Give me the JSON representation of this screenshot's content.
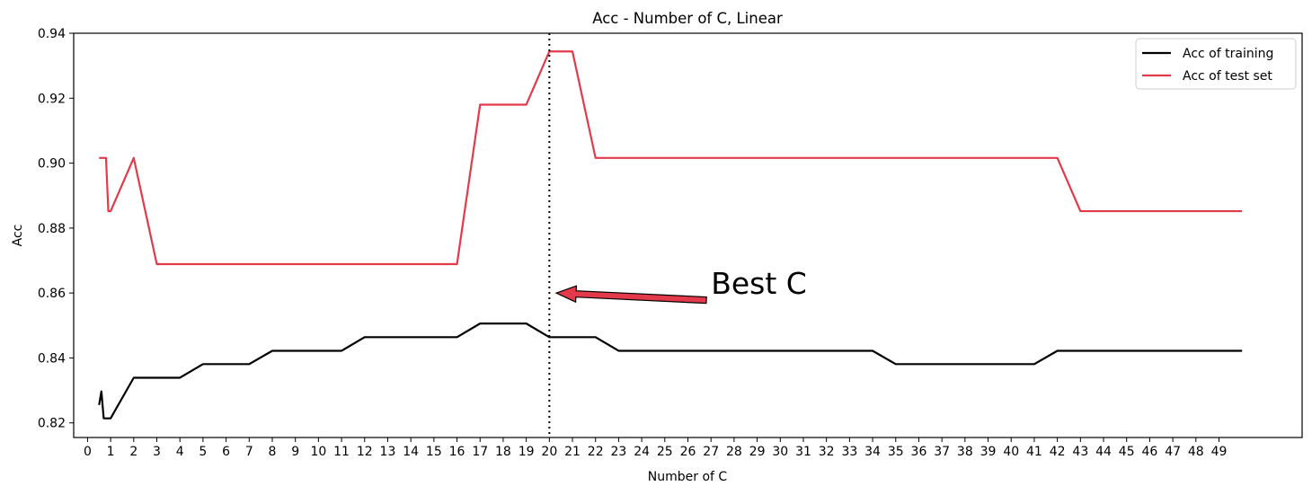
{
  "chart_data": {
    "type": "line",
    "title": "Acc - Number of C, Linear",
    "xlabel": "Number of C",
    "ylabel": "Acc",
    "xlim": [
      -0.6,
      52.6
    ],
    "ylim": [
      0.8155,
      0.94
    ],
    "xticks": [
      0,
      1,
      2,
      3,
      4,
      5,
      6,
      7,
      8,
      9,
      10,
      11,
      12,
      13,
      14,
      15,
      16,
      17,
      18,
      19,
      20,
      21,
      22,
      23,
      24,
      25,
      26,
      27,
      28,
      29,
      30,
      31,
      32,
      33,
      34,
      35,
      36,
      37,
      38,
      39,
      40,
      41,
      42,
      43,
      44,
      45,
      46,
      47,
      48,
      49
    ],
    "yticks": [
      0.82,
      0.84,
      0.86,
      0.88,
      0.9,
      0.92,
      0.94
    ],
    "ytick_labels": [
      "0.82",
      "0.84",
      "0.86",
      "0.88",
      "0.90",
      "0.92",
      "0.94"
    ],
    "grid": false,
    "legend_position": "top-right",
    "series": [
      {
        "name": "Acc of training",
        "color": "#000000",
        "points": [
          [
            0.5,
            0.8255
          ],
          [
            0.6,
            0.8297
          ],
          [
            0.7,
            0.8214
          ],
          [
            1,
            0.8214
          ],
          [
            2,
            0.8339
          ],
          [
            3,
            0.8339
          ],
          [
            4,
            0.8339
          ],
          [
            5,
            0.8381
          ],
          [
            6,
            0.8381
          ],
          [
            7,
            0.8381
          ],
          [
            8,
            0.8422
          ],
          [
            9,
            0.8422
          ],
          [
            10,
            0.8422
          ],
          [
            11,
            0.8422
          ],
          [
            12,
            0.8464
          ],
          [
            13,
            0.8464
          ],
          [
            14,
            0.8464
          ],
          [
            15,
            0.8464
          ],
          [
            16,
            0.8464
          ],
          [
            17,
            0.8506
          ],
          [
            18,
            0.8506
          ],
          [
            19,
            0.8506
          ],
          [
            20,
            0.8464
          ],
          [
            21,
            0.8464
          ],
          [
            22,
            0.8464
          ],
          [
            23,
            0.8422
          ],
          [
            24,
            0.8422
          ],
          [
            25,
            0.8422
          ],
          [
            26,
            0.8422
          ],
          [
            27,
            0.8422
          ],
          [
            28,
            0.8422
          ],
          [
            29,
            0.8422
          ],
          [
            30,
            0.8422
          ],
          [
            31,
            0.8422
          ],
          [
            32,
            0.8422
          ],
          [
            33,
            0.8422
          ],
          [
            34,
            0.8422
          ],
          [
            35,
            0.8381
          ],
          [
            36,
            0.8381
          ],
          [
            37,
            0.8381
          ],
          [
            38,
            0.8381
          ],
          [
            39,
            0.8381
          ],
          [
            40,
            0.8381
          ],
          [
            41,
            0.8381
          ],
          [
            42,
            0.8422
          ],
          [
            43,
            0.8422
          ],
          [
            44,
            0.8422
          ],
          [
            45,
            0.8422
          ],
          [
            46,
            0.8422
          ],
          [
            47,
            0.8422
          ],
          [
            48,
            0.8422
          ],
          [
            49,
            0.8422
          ],
          [
            50,
            0.8422
          ]
        ]
      },
      {
        "name": "Acc of test set",
        "color": "#e23a4a",
        "points": [
          [
            0.5,
            0.9016
          ],
          [
            0.6,
            0.9016
          ],
          [
            0.8,
            0.9016
          ],
          [
            0.9,
            0.8852
          ],
          [
            1,
            0.8852
          ],
          [
            2,
            0.9016
          ],
          [
            3,
            0.8689
          ],
          [
            4,
            0.8689
          ],
          [
            5,
            0.8689
          ],
          [
            6,
            0.8689
          ],
          [
            7,
            0.8689
          ],
          [
            8,
            0.8689
          ],
          [
            9,
            0.8689
          ],
          [
            10,
            0.8689
          ],
          [
            11,
            0.8689
          ],
          [
            12,
            0.8689
          ],
          [
            13,
            0.8689
          ],
          [
            14,
            0.8689
          ],
          [
            15,
            0.8689
          ],
          [
            16,
            0.8689
          ],
          [
            17,
            0.918
          ],
          [
            18,
            0.918
          ],
          [
            19,
            0.918
          ],
          [
            20,
            0.9344
          ],
          [
            21,
            0.9344
          ],
          [
            22,
            0.9016
          ],
          [
            23,
            0.9016
          ],
          [
            24,
            0.9016
          ],
          [
            25,
            0.9016
          ],
          [
            26,
            0.9016
          ],
          [
            27,
            0.9016
          ],
          [
            28,
            0.9016
          ],
          [
            29,
            0.9016
          ],
          [
            30,
            0.9016
          ],
          [
            31,
            0.9016
          ],
          [
            32,
            0.9016
          ],
          [
            33,
            0.9016
          ],
          [
            34,
            0.9016
          ],
          [
            35,
            0.9016
          ],
          [
            36,
            0.9016
          ],
          [
            37,
            0.9016
          ],
          [
            38,
            0.9016
          ],
          [
            39,
            0.9016
          ],
          [
            40,
            0.9016
          ],
          [
            41,
            0.9016
          ],
          [
            42,
            0.9016
          ],
          [
            43,
            0.8852
          ],
          [
            44,
            0.8852
          ],
          [
            45,
            0.8852
          ],
          [
            46,
            0.8852
          ],
          [
            47,
            0.8852
          ],
          [
            48,
            0.8852
          ],
          [
            49,
            0.8852
          ],
          [
            50,
            0.8852
          ]
        ]
      }
    ],
    "vline": {
      "x": 20,
      "style": "dotted",
      "color": "#000000"
    },
    "annotation": {
      "text": "Best C",
      "text_x": 27,
      "text_y": 0.86,
      "arrow_from": [
        26.8,
        0.8578
      ],
      "arrow_to": [
        20.3,
        0.86
      ],
      "arrow_color": "#e23a4a"
    }
  }
}
